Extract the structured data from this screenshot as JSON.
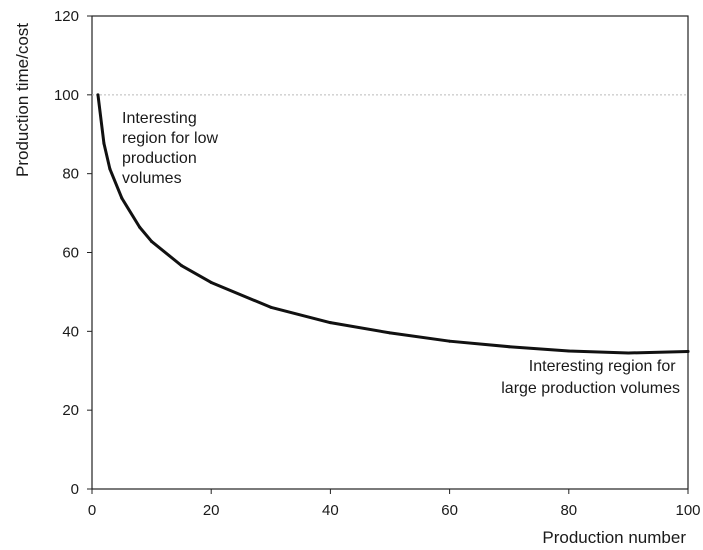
{
  "chart_data": {
    "type": "line",
    "xlabel": "Production number",
    "ylabel": "Production time/cost",
    "xlim": [
      0,
      100
    ],
    "ylim": [
      0,
      120
    ],
    "x_ticks": [
      0,
      20,
      40,
      60,
      80,
      100
    ],
    "y_ticks": [
      0,
      20,
      40,
      60,
      80,
      100,
      120
    ],
    "grid": false,
    "reference_line_y": 100,
    "series": [
      {
        "x": [
          1,
          2,
          3,
          5,
          8,
          10,
          15,
          20,
          30,
          40,
          50,
          60,
          70,
          80,
          90,
          100
        ],
        "y": [
          100,
          87.7,
          81.2,
          73.8,
          66.4,
          62.8,
          56.7,
          52.4,
          46.1,
          42.2,
          39.6,
          37.5,
          36.1,
          35.0,
          34.5,
          34.9
        ]
      }
    ],
    "annotations": [
      {
        "lines": [
          "Interesting",
          "region for low",
          "production",
          "volumes"
        ]
      },
      {
        "lines": [
          "Interesting region for",
          "large production volumes"
        ]
      }
    ]
  }
}
